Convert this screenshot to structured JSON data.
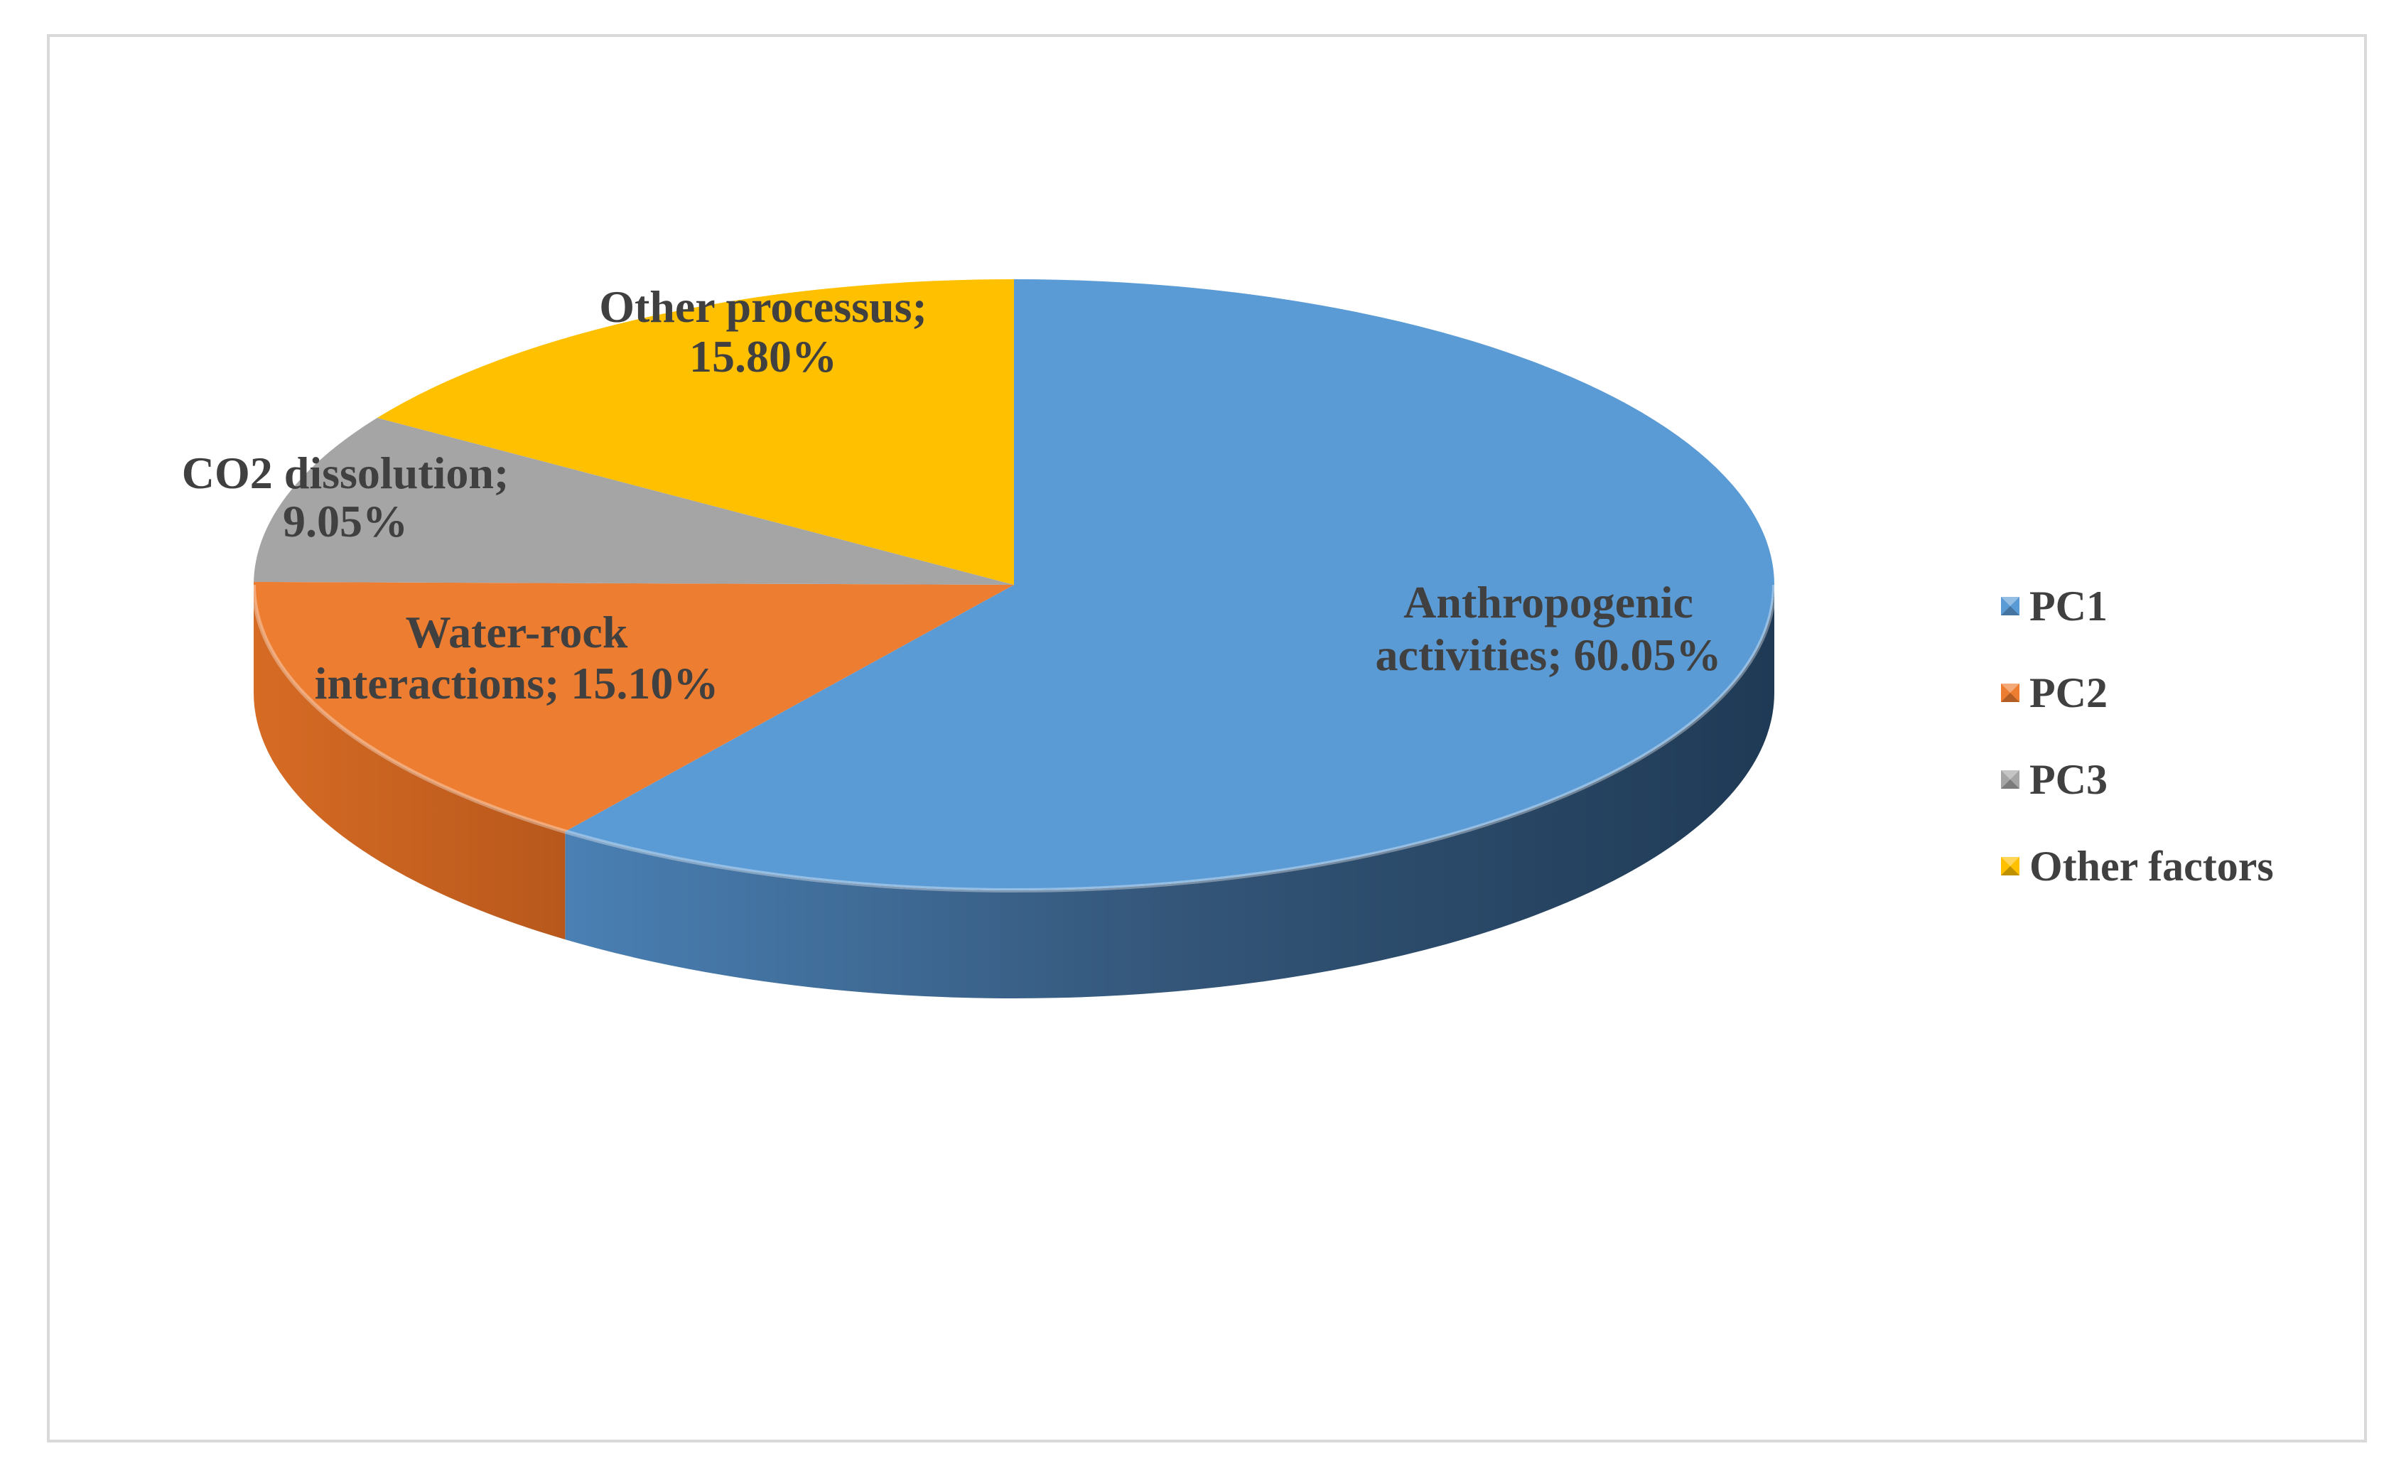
{
  "chart_data": {
    "type": "pie",
    "title": "",
    "legend_position": "right",
    "slices": [
      {
        "legend": "PC1",
        "label_line1": "Anthropogenic",
        "label_line2": "activities; 60.05%",
        "value": 60.05,
        "color": "#5B9BD5",
        "side_color": "#3D6A95"
      },
      {
        "legend": "PC2",
        "label_line1": "Water-rock",
        "label_line2": "interactions; 15.10%",
        "value": 15.1,
        "color": "#ED7D31",
        "side_color": "#B85E22"
      },
      {
        "legend": "PC3",
        "label_line1": "CO2 dissolution;",
        "label_line2": "9.05%",
        "value": 9.05,
        "color": "#A5A5A5",
        "side_color": "#7A7A7A"
      },
      {
        "legend": "Other factors",
        "label_line1": "Other processus;",
        "label_line2": "15.80%",
        "value": 15.8,
        "color": "#FFC000",
        "side_color": "#C79500"
      }
    ]
  }
}
